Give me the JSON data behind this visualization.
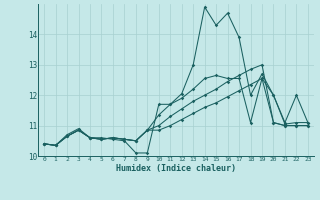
{
  "title": "",
  "xlabel": "Humidex (Indice chaleur)",
  "bg_color": "#c5e8e8",
  "grid_color": "#a8d0d0",
  "line_color": "#1a6060",
  "xlim": [
    -0.5,
    23.5
  ],
  "ylim": [
    10.0,
    15.0
  ],
  "yticks": [
    10,
    11,
    12,
    13,
    14
  ],
  "xticks": [
    0,
    1,
    2,
    3,
    4,
    5,
    6,
    7,
    8,
    9,
    10,
    11,
    12,
    13,
    14,
    15,
    16,
    17,
    18,
    19,
    20,
    21,
    22,
    23
  ],
  "series": [
    [
      10.4,
      10.35,
      10.7,
      10.9,
      10.6,
      10.6,
      10.55,
      10.5,
      10.1,
      10.1,
      11.7,
      11.7,
      12.05,
      13.0,
      14.9,
      14.3,
      14.7,
      13.9,
      12.0,
      12.7,
      12.0,
      11.1,
      12.0,
      11.1
    ],
    [
      10.4,
      10.35,
      10.65,
      10.85,
      10.6,
      10.55,
      10.6,
      10.55,
      10.5,
      10.85,
      11.35,
      11.7,
      11.9,
      12.2,
      12.55,
      12.65,
      12.55,
      12.55,
      11.1,
      12.55,
      12.0,
      11.05,
      11.1,
      11.1
    ],
    [
      10.4,
      10.35,
      10.65,
      10.85,
      10.6,
      10.55,
      10.6,
      10.55,
      10.5,
      10.85,
      11.0,
      11.3,
      11.55,
      11.8,
      12.0,
      12.2,
      12.45,
      12.65,
      12.85,
      13.0,
      11.1,
      11.0,
      11.0,
      11.0
    ],
    [
      10.4,
      10.35,
      10.65,
      10.85,
      10.6,
      10.55,
      10.6,
      10.55,
      10.5,
      10.85,
      10.85,
      11.0,
      11.2,
      11.4,
      11.6,
      11.75,
      11.95,
      12.15,
      12.35,
      12.55,
      11.1,
      11.0,
      11.0,
      11.0
    ]
  ]
}
